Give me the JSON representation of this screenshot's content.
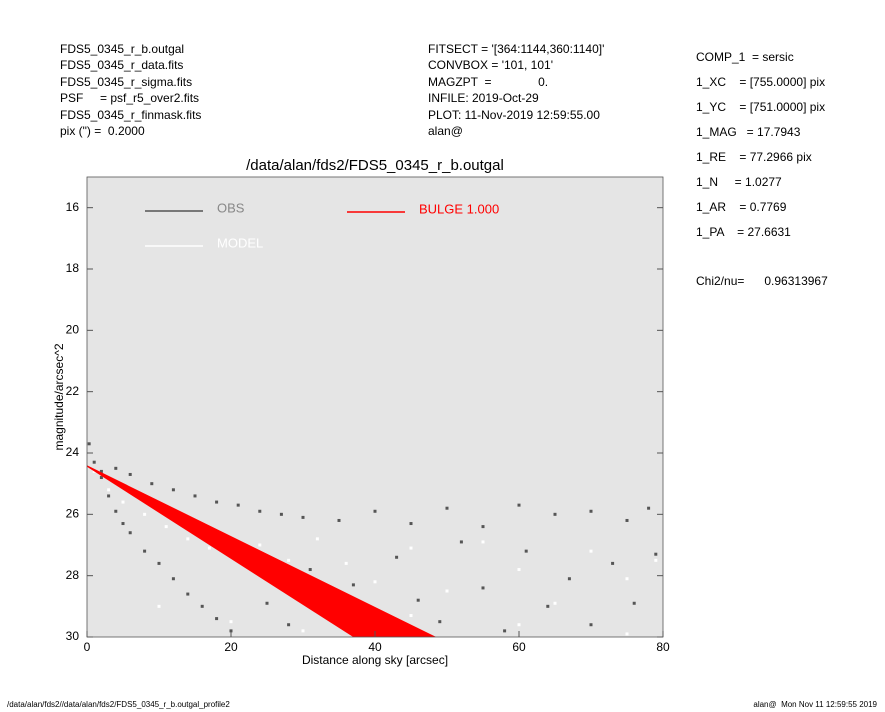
{
  "header_left": [
    "FDS5_0345_r_b.outgal",
    "FDS5_0345_r_data.fits",
    "FDS5_0345_r_sigma.fits",
    "PSF     = psf_r5_over2.fits",
    "FDS5_0345_r_finmask.fits",
    "pix (\") =  0.2000"
  ],
  "header_middle": [
    "FITSECT = '[364:1144,360:1140]'",
    "CONVBOX = '101, 101'",
    "MAGZPT  =              0.",
    "INFILE: 2019-Oct-29",
    "PLOT: 11-Nov-2019 12:59:55.00",
    "alan@"
  ],
  "header_right": [
    "COMP_1  = sersic",
    "1_XC    = [755.0000] pix",
    "1_YC    = [751.0000] pix",
    "1_MAG   = 17.7943",
    "1_RE    = 77.2966 pix",
    "1_N     = 1.0277",
    "1_AR    = 0.7769",
    "1_PA    = 27.6631"
  ],
  "chi2": "Chi2/nu=      0.96313967",
  "footer_left": "/data/alan/fds2//data/alan/fds2/FDS5_0345_r_b.outgal_profile2",
  "footer_right": "alan@  Mon Nov 11 12:59:55 2019",
  "chart_data": {
    "type": "scatter",
    "title": "/data/alan/fds2/FDS5_0345_r_b.outgal",
    "x_label": "Distance along sky [arcsec]",
    "y_label": "magnitude/arcsec^2",
    "xlim": [
      0,
      80
    ],
    "xticks": [
      0,
      20,
      40,
      60,
      80
    ],
    "ylim": [
      15,
      30
    ],
    "y_inverted": true,
    "yticks": [
      16,
      18,
      20,
      22,
      24,
      26,
      28,
      30
    ],
    "background": "#e5e5e5",
    "series": [
      {
        "name": "OBS",
        "color": "#555555",
        "legend_text_color": "#888888",
        "x": [
          0.3,
          1,
          2,
          3,
          4,
          5,
          6,
          8,
          10,
          12,
          14,
          16,
          18,
          20,
          22,
          25,
          28,
          31,
          34,
          37,
          40,
          43,
          46,
          49,
          52,
          55,
          58,
          61,
          64,
          67,
          70,
          73,
          76,
          79,
          2,
          4,
          6,
          9,
          12,
          15,
          18,
          21,
          24,
          27,
          30,
          35,
          40,
          45,
          50,
          55,
          60,
          65,
          70,
          75,
          78
        ],
        "values": [
          23.7,
          24.3,
          24.8,
          25.4,
          25.9,
          26.3,
          26.6,
          27.2,
          27.6,
          28.1,
          28.6,
          29.0,
          29.4,
          29.8,
          27.5,
          28.9,
          29.6,
          27.8,
          29.2,
          28.3,
          29.7,
          27.4,
          28.8,
          29.5,
          26.9,
          28.4,
          29.8,
          27.2,
          29.0,
          28.1,
          29.6,
          27.6,
          28.9,
          27.3,
          24.6,
          24.5,
          24.7,
          25.0,
          25.2,
          25.4,
          25.6,
          25.7,
          25.9,
          26.0,
          26.1,
          26.2,
          25.9,
          26.3,
          25.8,
          26.4,
          25.7,
          26.0,
          25.9,
          26.2,
          25.8
        ]
      },
      {
        "name": "MODEL",
        "color": "#ffffff",
        "legend_text_color": "#ffffff",
        "x": [
          1,
          3,
          5,
          8,
          11,
          14,
          17,
          20,
          24,
          28,
          32,
          36,
          40,
          45,
          50,
          55,
          60,
          65,
          70,
          75,
          79,
          10,
          20,
          30,
          45,
          60,
          75
        ],
        "values": [
          24.6,
          25.2,
          25.6,
          26.0,
          26.4,
          26.8,
          27.1,
          27.3,
          27.0,
          27.5,
          26.8,
          27.6,
          28.2,
          27.1,
          28.5,
          26.9,
          27.8,
          28.9,
          27.2,
          28.1,
          27.5,
          29.0,
          29.5,
          29.8,
          29.3,
          29.6,
          29.9
        ]
      },
      {
        "name": "BULGE  1.000",
        "color": "#ff0000",
        "legend_text_color": "#ff0000",
        "band": true,
        "x": [
          0,
          48.5
        ],
        "values": [
          24.4,
          30
        ],
        "values_low": [
          24.45,
          31.73
        ]
      }
    ]
  }
}
